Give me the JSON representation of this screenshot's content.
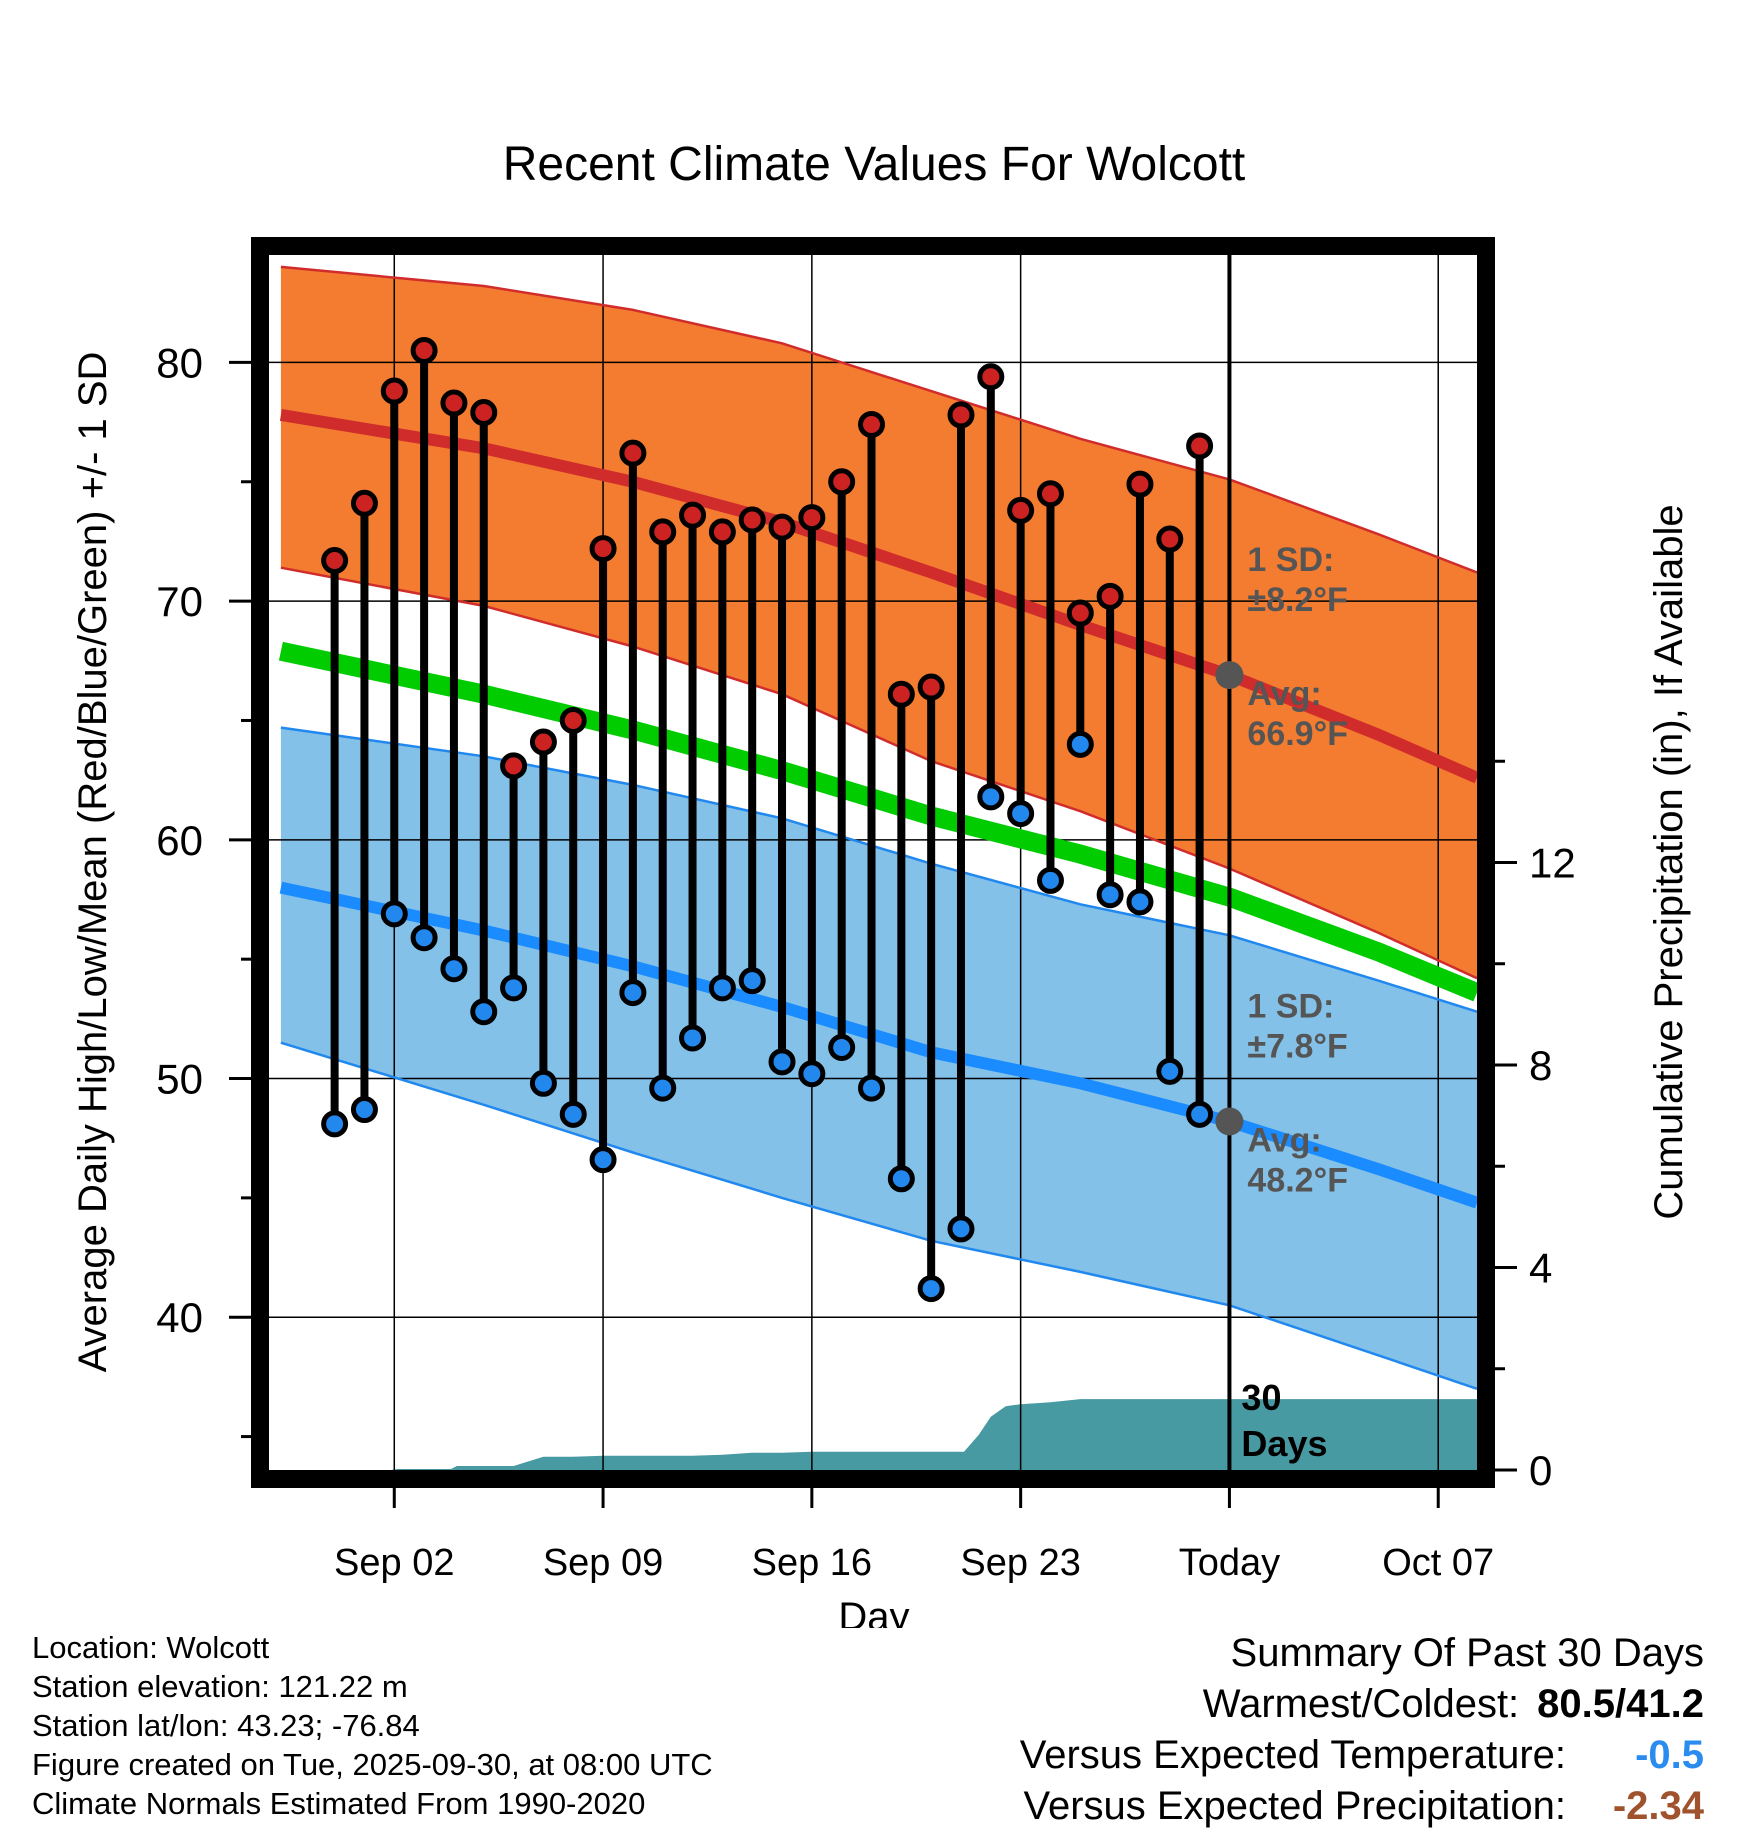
{
  "chart_data": {
    "type": "line",
    "title": "Recent Climate Values For Wolcott",
    "xlabel": "Day",
    "ylabel_left": "Average Daily High/Low/Mean (Red/Blue/Green) +/- 1 SD",
    "ylabel_right": "Cumulative Precipitation (in), If Available",
    "xlim": [
      -2.2,
      38.3
    ],
    "ylim_left": [
      33.6,
      84.5
    ],
    "ylim_right": [
      0,
      24
    ],
    "x_ticks": [
      {
        "x": 2,
        "label": "Sep 02"
      },
      {
        "x": 9,
        "label": "Sep 09"
      },
      {
        "x": 16,
        "label": "Sep 16"
      },
      {
        "x": 23,
        "label": "Sep 23"
      },
      {
        "x": 30,
        "label": "Today"
      },
      {
        "x": 37,
        "label": "Oct 07"
      }
    ],
    "y_ticks_left": [
      40,
      50,
      60,
      70,
      80
    ],
    "y_ticks_right": [
      0,
      4,
      8,
      12
    ],
    "today_x": 30,
    "today_label": "30 Days",
    "normals": {
      "x": [
        -1.8,
        5,
        10,
        15,
        20,
        25,
        30,
        35,
        38.3
      ],
      "high_avg": [
        77.8,
        76.4,
        75.0,
        73.3,
        71.2,
        69.0,
        66.9,
        64.4,
        62.6
      ],
      "high_plus_sd": [
        84.0,
        83.2,
        82.2,
        80.8,
        78.8,
        76.8,
        75.1,
        72.8,
        71.2
      ],
      "high_minus_sd": [
        71.4,
        69.8,
        68.1,
        66.1,
        63.3,
        61.2,
        58.8,
        56.1,
        54.2
      ],
      "mean": [
        67.9,
        66.1,
        64.6,
        62.9,
        61.0,
        59.4,
        57.6,
        55.3,
        53.6
      ],
      "low_avg": [
        58.0,
        56.2,
        54.7,
        53.0,
        51.1,
        49.8,
        48.2,
        46.2,
        44.8
      ],
      "low_plus_sd": [
        64.7,
        63.5,
        62.3,
        60.9,
        59.0,
        57.3,
        56.0,
        54.1,
        52.8
      ],
      "low_minus_sd": [
        51.5,
        48.9,
        46.9,
        45.0,
        43.2,
        41.9,
        40.5,
        38.4,
        37.0
      ]
    },
    "series": [
      {
        "name": "Daily High",
        "color": "#cc2222",
        "x": [
          0,
          1,
          2,
          3,
          4,
          5,
          6,
          7,
          8,
          9,
          10,
          11,
          12,
          13,
          14,
          15,
          16,
          17,
          18,
          19,
          20,
          21,
          22,
          23,
          24,
          25,
          26,
          27,
          28,
          29
        ],
        "values": [
          71.7,
          74.1,
          78.8,
          80.5,
          78.3,
          77.9,
          63.1,
          64.1,
          65.0,
          72.2,
          76.2,
          72.9,
          73.6,
          72.9,
          73.4,
          73.1,
          73.5,
          75.0,
          77.4,
          66.1,
          66.4,
          77.8,
          79.4,
          73.8,
          74.5,
          69.5,
          70.2,
          74.9,
          72.6,
          76.5
        ]
      },
      {
        "name": "Daily Low",
        "color": "#2288ee",
        "x": [
          0,
          1,
          2,
          3,
          4,
          5,
          6,
          7,
          8,
          9,
          10,
          11,
          12,
          13,
          14,
          15,
          16,
          17,
          18,
          19,
          20,
          21,
          22,
          23,
          24,
          25,
          26,
          27,
          28,
          29
        ],
        "values": [
          48.1,
          48.7,
          56.9,
          55.9,
          54.6,
          52.8,
          53.8,
          49.8,
          48.5,
          46.6,
          53.6,
          49.6,
          51.7,
          53.8,
          54.1,
          50.7,
          50.2,
          51.3,
          49.6,
          45.8,
          41.2,
          43.7,
          61.8,
          61.1,
          58.3,
          64.0,
          57.7,
          57.4,
          50.3,
          48.5
        ]
      }
    ],
    "precipitation": {
      "x": [
        -1.8,
        0,
        1,
        1.9,
        2.1,
        3.9,
        4.1,
        6,
        7,
        8,
        9,
        10,
        11,
        12,
        13,
        14,
        15,
        16,
        17,
        18,
        19,
        20,
        21.1,
        21.6,
        22,
        22.5,
        23,
        24,
        25,
        30,
        38.3
      ],
      "values": [
        0,
        0,
        0,
        0,
        0.02,
        0.02,
        0.08,
        0.08,
        0.26,
        0.26,
        0.28,
        0.28,
        0.28,
        0.28,
        0.3,
        0.34,
        0.34,
        0.36,
        0.36,
        0.36,
        0.36,
        0.36,
        0.36,
        0.7,
        1.05,
        1.26,
        1.3,
        1.34,
        1.4,
        1.4,
        1.4
      ]
    },
    "annotations": {
      "high": {
        "sd_label": "1 SD:",
        "sd_value": "±8.2°F",
        "avg_label": "Avg:",
        "avg_value": "66.9°F",
        "avg": 66.9
      },
      "low": {
        "sd_label": "1 SD:",
        "sd_value": "±7.8°F",
        "avg_label": "Avg:",
        "avg_value": "48.2°F",
        "avg": 48.2
      }
    },
    "colors": {
      "high_band": "#f37c30",
      "high_band_edge": "#d12c2c",
      "high_avg": "#d12c2c",
      "low_band": "#84c1e8",
      "low_band_edge": "#2088ee",
      "low_avg": "#1a8cff",
      "mean": "#00cc00",
      "precip": "#4799a2",
      "annotation": "#555555",
      "marker_high": "#cc2222",
      "marker_low": "#2288ee"
    }
  },
  "footer": {
    "location": "Location: Wolcott",
    "elevation": "Station elevation: 121.22 m",
    "latlon": "Station lat/lon: 43.23; -76.84",
    "created": "Figure created on Tue, 2025-09-30, at 08:00 UTC",
    "normals": "Climate Normals Estimated From 1990-2020"
  },
  "summary": {
    "title": "Summary Of Past 30 Days",
    "warm_cold_label": "Warmest/Coldest:",
    "warm_cold_value": "80.5/41.2",
    "temp_label": "Versus Expected Temperature:",
    "temp_value": "-0.5",
    "temp_color": "#2b8cf0",
    "precip_label": "Versus Expected Precipitation:",
    "precip_value": "-2.34",
    "precip_color": "#a0522d"
  }
}
